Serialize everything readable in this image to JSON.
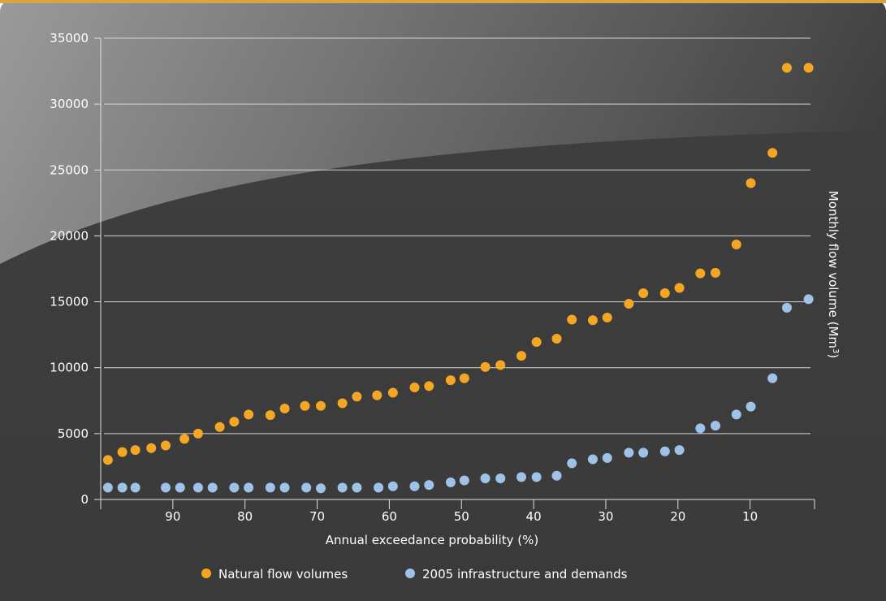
{
  "chart_data": {
    "type": "scatter",
    "title": "",
    "xlabel": "Annual exceedance probability (%)",
    "ylabel": "Monthly flow volume (Mm",
    "ylabel_superscript": "3",
    "ylabel_close": ")",
    "xlim": [
      100,
      0
    ],
    "ylim": [
      0,
      35000
    ],
    "x_reversed": true,
    "grid": true,
    "legend_placement": "bottom",
    "x_ticks": [
      90,
      80,
      70,
      60,
      50,
      40,
      30,
      20,
      10
    ],
    "y_ticks": [
      0,
      5000,
      10000,
      15000,
      20000,
      25000,
      30000,
      35000
    ],
    "series": [
      {
        "name": "Natural flow volumes",
        "color": "#f5a623",
        "x": [
          99,
          97,
          95.2,
          93,
          91,
          88.4,
          86.5,
          83.5,
          81.5,
          79.5,
          76.5,
          74.5,
          71.7,
          69.5,
          66.5,
          64.5,
          61.7,
          59.5,
          56.5,
          54.5,
          51.5,
          49.6,
          46.7,
          44.6,
          41.7,
          39.6,
          36.8,
          34.7,
          31.8,
          29.8,
          26.8,
          24.8,
          21.8,
          19.8,
          16.9,
          14.8,
          11.9,
          9.9,
          6.9,
          4.9,
          1.9
        ],
        "y": [
          3000,
          3600,
          3750,
          3900,
          4100,
          4600,
          5000,
          5500,
          5900,
          6450,
          6400,
          6900,
          7100,
          7100,
          7300,
          7800,
          7900,
          8100,
          8500,
          8600,
          9050,
          9200,
          10050,
          10200,
          10900,
          11950,
          12200,
          13650,
          13600,
          13800,
          14850,
          15650,
          15650,
          16050,
          17150,
          17200,
          19350,
          24000,
          26300,
          32750,
          32750
        ]
      },
      {
        "name": "2005 infrastructure and demands",
        "color": "#9fc3e8",
        "x": [
          99,
          97,
          95.2,
          91,
          89,
          86.5,
          84.5,
          81.5,
          79.5,
          76.5,
          74.5,
          71.5,
          69.5,
          66.5,
          64.5,
          61.5,
          59.5,
          56.5,
          54.5,
          51.5,
          49.6,
          46.7,
          44.6,
          41.7,
          39.6,
          36.8,
          34.7,
          31.8,
          29.8,
          26.8,
          24.8,
          21.8,
          19.8,
          16.9,
          14.8,
          11.9,
          9.9,
          6.9,
          4.9,
          1.9
        ],
        "y": [
          900,
          900,
          900,
          900,
          900,
          900,
          900,
          900,
          900,
          900,
          900,
          900,
          850,
          900,
          900,
          900,
          1000,
          1000,
          1100,
          1300,
          1450,
          1600,
          1600,
          1700,
          1700,
          1800,
          2750,
          3050,
          3150,
          3550,
          3550,
          3650,
          3750,
          5400,
          5600,
          6450,
          7050,
          9200,
          14550,
          15200
        ]
      }
    ]
  }
}
